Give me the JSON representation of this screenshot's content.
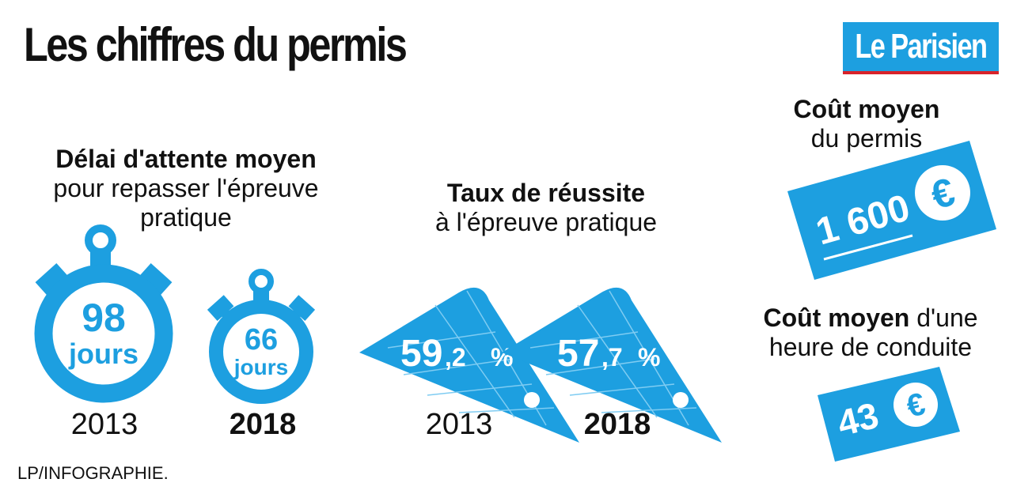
{
  "page": {
    "title": "Les chiffres du permis",
    "logo_text": "Le Parisien",
    "credit": "LP/INFOGRAPHIE.",
    "accent_color": "#1d9fe0"
  },
  "waiting": {
    "heading_bold": "Délai d'attente moyen",
    "heading_rest": "pour repasser l'épreuve pratique",
    "items": [
      {
        "number": "98",
        "unit": "jours",
        "year": "2013",
        "icon": "stopwatch-icon"
      },
      {
        "number": "66",
        "unit": "jours",
        "year": "2018",
        "icon": "stopwatch-icon"
      }
    ]
  },
  "success": {
    "heading_bold": "Taux de réussite",
    "heading_rest": "à l'épreuve pratique",
    "items": [
      {
        "integer": "59",
        "decimal": ",2",
        "unit": "%",
        "year": "2013",
        "icon": "set-square-icon"
      },
      {
        "integer": "57",
        "decimal": ",7",
        "unit": "%",
        "year": "2018",
        "icon": "set-square-icon"
      }
    ]
  },
  "cost_license": {
    "heading_bold": "Coût moyen",
    "heading_rest": "du permis",
    "amount": "1 600",
    "currency": "€",
    "icon": "banknote-icon"
  },
  "cost_hour": {
    "heading_bold": "Coût moyen",
    "heading_rest_1": "d'une",
    "heading_rest_2": "heure de conduite",
    "amount": "43",
    "currency": "€",
    "icon": "banknote-icon"
  }
}
